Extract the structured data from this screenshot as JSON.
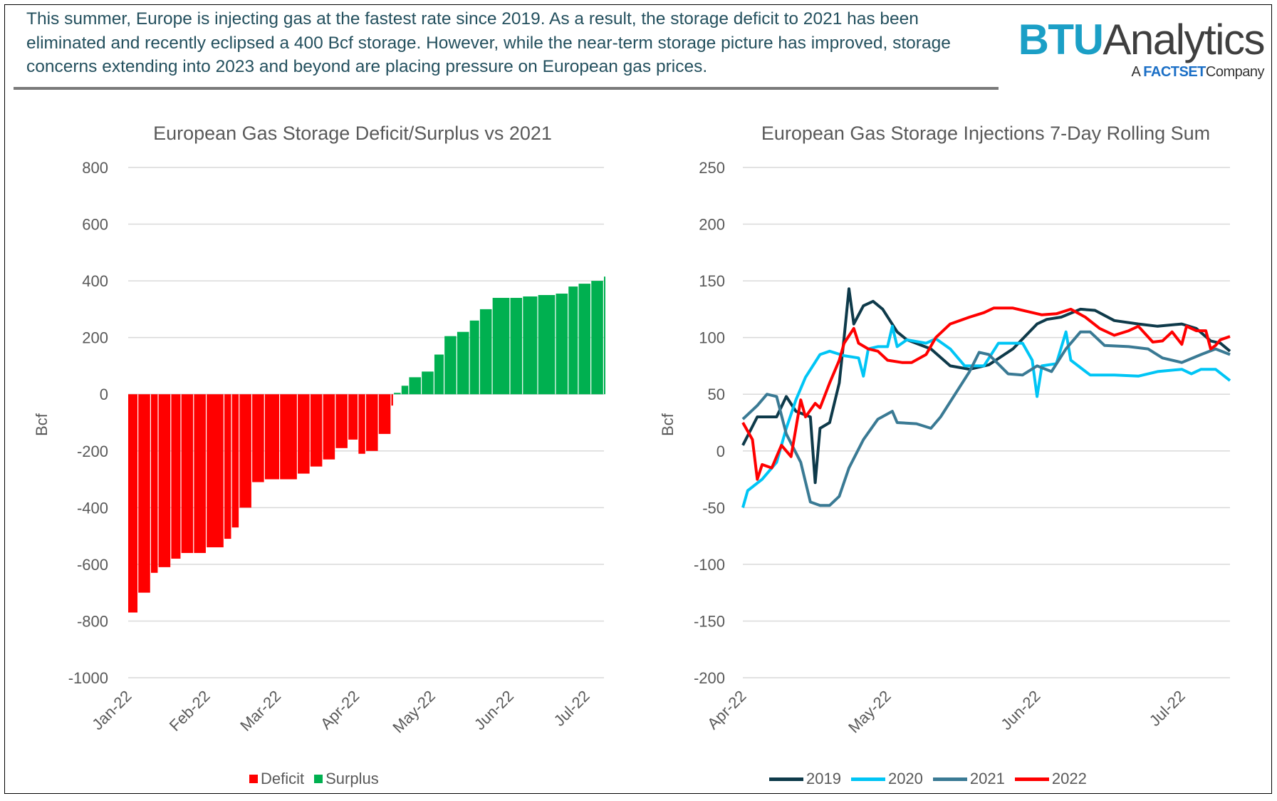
{
  "header": {
    "text": "This summer, Europe is injecting gas at the fastest rate since 2019. As a result, the storage deficit to 2021 has been eliminated and recently eclipsed a 400 Bcf storage. However, while the near-term storage picture has improved, storage concerns extending into 2023 and beyond are placing pressure on European gas prices.",
    "color": "#24505e"
  },
  "logo": {
    "brand": "BTU",
    "brand2": "Analytics",
    "sub_a": "A",
    "sub_factset": "FACTSET",
    "sub_company": "Company"
  },
  "chart_data": [
    {
      "type": "bar",
      "title": "European Gas Storage Deficit/Surplus vs 2021",
      "ylabel": "Bcf",
      "ylim": [
        -1000,
        800
      ],
      "yticks": [
        800,
        600,
        400,
        200,
        0,
        -200,
        -400,
        -600,
        -800,
        -1000
      ],
      "xlim": [
        "2022-01-01",
        "2022-07-08"
      ],
      "xticks": [
        {
          "date": "2022-01-01",
          "label": "Jan-22"
        },
        {
          "date": "2022-02-01",
          "label": "Feb-22"
        },
        {
          "date": "2022-03-01",
          "label": "Mar-22"
        },
        {
          "date": "2022-04-01",
          "label": "Apr-22"
        },
        {
          "date": "2022-05-01",
          "label": "May-22"
        },
        {
          "date": "2022-06-01",
          "label": "Jun-22"
        },
        {
          "date": "2022-07-01",
          "label": "Jul-22"
        }
      ],
      "grid": true,
      "legend_position": "bottom",
      "legend": [
        {
          "name": "Deficit",
          "color": "#ff0000"
        },
        {
          "name": "Surplus",
          "color": "#00b050"
        }
      ],
      "points": [
        [
          "2022-01-01",
          -770
        ],
        [
          "2022-01-05",
          -700
        ],
        [
          "2022-01-10",
          -630
        ],
        [
          "2022-01-13",
          -610
        ],
        [
          "2022-01-18",
          -580
        ],
        [
          "2022-01-22",
          -560
        ],
        [
          "2022-01-27",
          -560
        ],
        [
          "2022-02-01",
          -540
        ],
        [
          "2022-02-08",
          -510
        ],
        [
          "2022-02-11",
          -470
        ],
        [
          "2022-02-14",
          -400
        ],
        [
          "2022-02-19",
          -310
        ],
        [
          "2022-02-24",
          -300
        ],
        [
          "2022-03-02",
          -300
        ],
        [
          "2022-03-09",
          -280
        ],
        [
          "2022-03-14",
          -255
        ],
        [
          "2022-03-19",
          -230
        ],
        [
          "2022-03-24",
          -190
        ],
        [
          "2022-03-29",
          -160
        ],
        [
          "2022-04-02",
          -210
        ],
        [
          "2022-04-05",
          -200
        ],
        [
          "2022-04-10",
          -140
        ],
        [
          "2022-04-15",
          -40
        ],
        [
          "2022-04-16",
          5
        ],
        [
          "2022-04-19",
          30
        ],
        [
          "2022-04-22",
          60
        ],
        [
          "2022-04-27",
          80
        ],
        [
          "2022-05-02",
          140
        ],
        [
          "2022-05-06",
          205
        ],
        [
          "2022-05-11",
          220
        ],
        [
          "2022-05-16",
          260
        ],
        [
          "2022-05-20",
          300
        ],
        [
          "2022-05-25",
          340
        ],
        [
          "2022-06-01",
          340
        ],
        [
          "2022-06-06",
          345
        ],
        [
          "2022-06-12",
          350
        ],
        [
          "2022-06-19",
          355
        ],
        [
          "2022-06-24",
          380
        ],
        [
          "2022-06-28",
          390
        ],
        [
          "2022-07-03",
          400
        ],
        [
          "2022-07-08",
          415
        ]
      ]
    },
    {
      "type": "line",
      "title": "European Gas Storage Injections 7-Day Rolling Sum",
      "ylabel": "Bcf",
      "ylim": [
        -200,
        250
      ],
      "yticks": [
        250,
        200,
        150,
        100,
        50,
        0,
        -50,
        -100,
        -150,
        -200
      ],
      "xlim": [
        "2022-04-01",
        "2022-07-11"
      ],
      "xticks": [
        {
          "date": "2022-04-01",
          "label": "Apr-22"
        },
        {
          "date": "2022-05-01",
          "label": "May-22"
        },
        {
          "date": "2022-06-01",
          "label": "Jun-22"
        },
        {
          "date": "2022-07-01",
          "label": "Jul-22"
        }
      ],
      "grid": true,
      "legend_position": "bottom",
      "series": [
        {
          "name": "2019",
          "color": "#0e3a4a",
          "points": [
            [
              "04-01",
              5
            ],
            [
              "04-04",
              30
            ],
            [
              "04-08",
              30
            ],
            [
              "04-10",
              48
            ],
            [
              "04-12",
              35
            ],
            [
              "04-15",
              30
            ],
            [
              "04-16",
              -28
            ],
            [
              "04-17",
              20
            ],
            [
              "04-19",
              25
            ],
            [
              "04-21",
              60
            ],
            [
              "04-22",
              100
            ],
            [
              "04-23",
              143
            ],
            [
              "04-24",
              112
            ],
            [
              "04-26",
              128
            ],
            [
              "04-28",
              132
            ],
            [
              "04-30",
              125
            ],
            [
              "05-03",
              105
            ],
            [
              "05-05",
              98
            ],
            [
              "05-10",
              90
            ],
            [
              "05-14",
              75
            ],
            [
              "05-18",
              72
            ],
            [
              "05-22",
              76
            ],
            [
              "05-27",
              90
            ],
            [
              "06-01",
              112
            ],
            [
              "06-03",
              116
            ],
            [
              "06-06",
              118
            ],
            [
              "06-10",
              125
            ],
            [
              "06-13",
              124
            ],
            [
              "06-17",
              115
            ],
            [
              "06-22",
              112
            ],
            [
              "06-26",
              110
            ],
            [
              "07-01",
              112
            ],
            [
              "07-04",
              108
            ],
            [
              "07-07",
              97
            ],
            [
              "07-09",
              95
            ],
            [
              "07-11",
              88
            ]
          ]
        },
        {
          "name": "2020",
          "color": "#00c5f5",
          "points": [
            [
              "04-01",
              -50
            ],
            [
              "04-02",
              -35
            ],
            [
              "04-05",
              -25
            ],
            [
              "04-08",
              -10
            ],
            [
              "04-10",
              20
            ],
            [
              "04-12",
              45
            ],
            [
              "04-14",
              65
            ],
            [
              "04-17",
              85
            ],
            [
              "04-19",
              88
            ],
            [
              "04-22",
              84
            ],
            [
              "04-25",
              82
            ],
            [
              "04-26",
              66
            ],
            [
              "04-27",
              90
            ],
            [
              "04-29",
              92
            ],
            [
              "05-01",
              92
            ],
            [
              "05-02",
              110
            ],
            [
              "05-03",
              92
            ],
            [
              "05-05",
              98
            ],
            [
              "05-09",
              95
            ],
            [
              "05-11",
              99
            ],
            [
              "05-14",
              90
            ],
            [
              "05-17",
              75
            ],
            [
              "05-21",
              75
            ],
            [
              "05-24",
              95
            ],
            [
              "05-29",
              95
            ],
            [
              "05-31",
              80
            ],
            [
              "06-01",
              48
            ],
            [
              "06-02",
              75
            ],
            [
              "06-05",
              77
            ],
            [
              "06-07",
              105
            ],
            [
              "06-08",
              80
            ],
            [
              "06-12",
              67
            ],
            [
              "06-17",
              67
            ],
            [
              "06-22",
              66
            ],
            [
              "06-26",
              70
            ],
            [
              "07-01",
              72
            ],
            [
              "07-03",
              68
            ],
            [
              "07-05",
              72
            ],
            [
              "07-08",
              72
            ],
            [
              "07-11",
              62
            ]
          ]
        },
        {
          "name": "2021",
          "color": "#3a7a94",
          "points": [
            [
              "04-01",
              28
            ],
            [
              "04-04",
              40
            ],
            [
              "04-06",
              50
            ],
            [
              "04-08",
              48
            ],
            [
              "04-10",
              15
            ],
            [
              "04-13",
              -10
            ],
            [
              "04-15",
              -45
            ],
            [
              "04-17",
              -48
            ],
            [
              "04-19",
              -48
            ],
            [
              "04-21",
              -40
            ],
            [
              "04-23",
              -15
            ],
            [
              "04-26",
              10
            ],
            [
              "04-29",
              28
            ],
            [
              "05-02",
              35
            ],
            [
              "05-03",
              25
            ],
            [
              "05-07",
              24
            ],
            [
              "05-10",
              20
            ],
            [
              "05-12",
              30
            ],
            [
              "05-15",
              50
            ],
            [
              "05-18",
              70
            ],
            [
              "05-20",
              87
            ],
            [
              "05-22",
              85
            ],
            [
              "05-26",
              68
            ],
            [
              "05-29",
              67
            ],
            [
              "06-01",
              75
            ],
            [
              "06-04",
              70
            ],
            [
              "06-07",
              90
            ],
            [
              "06-10",
              105
            ],
            [
              "06-12",
              105
            ],
            [
              "06-15",
              93
            ],
            [
              "06-20",
              92
            ],
            [
              "06-24",
              90
            ],
            [
              "06-27",
              82
            ],
            [
              "07-01",
              78
            ],
            [
              "07-05",
              85
            ],
            [
              "07-08",
              90
            ],
            [
              "07-11",
              85
            ]
          ]
        },
        {
          "name": "2022",
          "color": "#ff0000",
          "points": [
            [
              "04-01",
              25
            ],
            [
              "04-03",
              10
            ],
            [
              "04-04",
              -25
            ],
            [
              "04-05",
              -12
            ],
            [
              "04-07",
              -15
            ],
            [
              "04-09",
              5
            ],
            [
              "04-11",
              -5
            ],
            [
              "04-12",
              20
            ],
            [
              "04-13",
              45
            ],
            [
              "04-14",
              30
            ],
            [
              "04-16",
              42
            ],
            [
              "04-17",
              38
            ],
            [
              "04-19",
              60
            ],
            [
              "04-21",
              80
            ],
            [
              "04-22",
              95
            ],
            [
              "04-24",
              108
            ],
            [
              "04-25",
              95
            ],
            [
              "04-27",
              90
            ],
            [
              "04-29",
              88
            ],
            [
              "05-01",
              80
            ],
            [
              "05-04",
              78
            ],
            [
              "05-06",
              78
            ],
            [
              "05-09",
              85
            ],
            [
              "05-11",
              100
            ],
            [
              "05-14",
              112
            ],
            [
              "05-18",
              118
            ],
            [
              "05-21",
              122
            ],
            [
              "05-23",
              126
            ],
            [
              "05-27",
              126
            ],
            [
              "05-30",
              123
            ],
            [
              "06-02",
              120
            ],
            [
              "06-05",
              121
            ],
            [
              "06-08",
              125
            ],
            [
              "06-11",
              118
            ],
            [
              "06-14",
              108
            ],
            [
              "06-17",
              102
            ],
            [
              "06-20",
              106
            ],
            [
              "06-22",
              110
            ],
            [
              "06-25",
              96
            ],
            [
              "06-27",
              97
            ],
            [
              "06-29",
              105
            ],
            [
              "07-01",
              94
            ],
            [
              "07-02",
              110
            ],
            [
              "07-04",
              106
            ],
            [
              "07-06",
              106
            ],
            [
              "07-07",
              90
            ],
            [
              "07-08",
              93
            ],
            [
              "07-09",
              98
            ],
            [
              "07-11",
              101
            ]
          ]
        }
      ]
    }
  ]
}
